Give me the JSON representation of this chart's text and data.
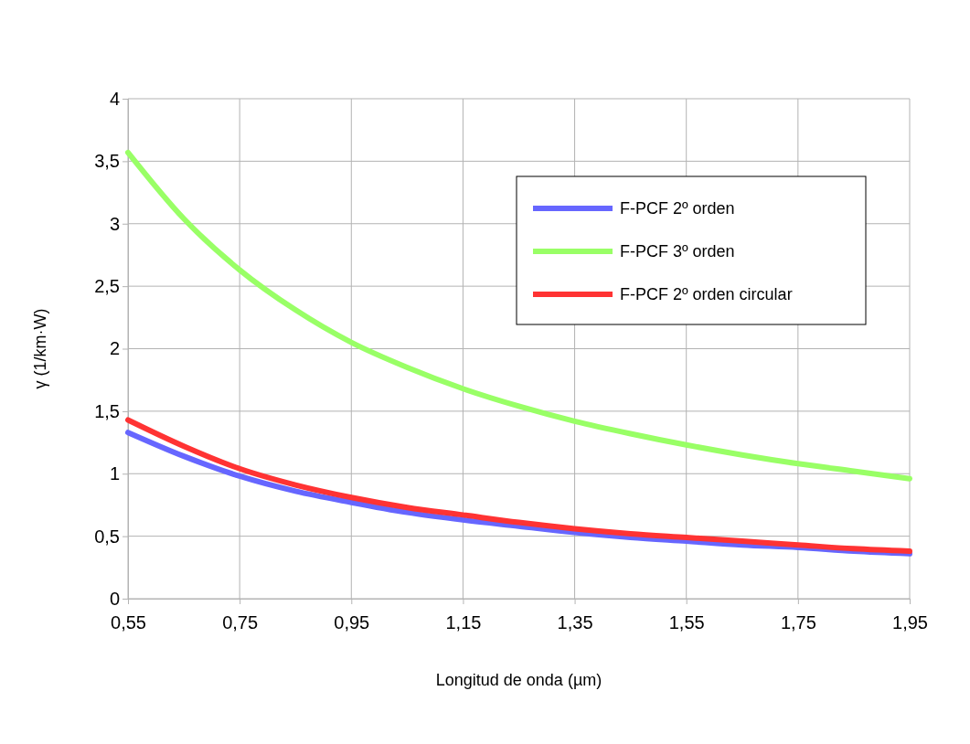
{
  "chart_data": {
    "type": "line",
    "xlabel": "Longitud de onda (µm)",
    "ylabel": "γ (1/km·W)",
    "x": [
      0.55,
      0.65,
      0.75,
      0.85,
      0.95,
      1.05,
      1.15,
      1.25,
      1.35,
      1.45,
      1.55,
      1.65,
      1.75,
      1.85,
      1.95
    ],
    "series": [
      {
        "name": "F-PCF 2º orden",
        "color": "#6666ff",
        "values": [
          1.33,
          1.14,
          0.98,
          0.86,
          0.77,
          0.69,
          0.63,
          0.58,
          0.53,
          0.49,
          0.46,
          0.43,
          0.41,
          0.38,
          0.36
        ]
      },
      {
        "name": "F-PCF 3º orden",
        "color": "#99ff66",
        "values": [
          3.57,
          3.04,
          2.63,
          2.31,
          2.05,
          1.85,
          1.68,
          1.54,
          1.42,
          1.32,
          1.23,
          1.15,
          1.08,
          1.02,
          0.96
        ]
      },
      {
        "name": "F-PCF 2º orden circular",
        "color": "#ff3333",
        "values": [
          1.43,
          1.22,
          1.04,
          0.91,
          0.81,
          0.73,
          0.67,
          0.61,
          0.56,
          0.52,
          0.49,
          0.46,
          0.43,
          0.4,
          0.38
        ]
      }
    ],
    "xlim": [
      0.55,
      1.95
    ],
    "xticks": [
      {
        "value": 0.55,
        "label": "0,55"
      },
      {
        "value": 0.75,
        "label": "0,75"
      },
      {
        "value": 0.95,
        "label": "0,95"
      },
      {
        "value": 1.15,
        "label": "1,15"
      },
      {
        "value": 1.35,
        "label": "1,35"
      },
      {
        "value": 1.55,
        "label": "1,55"
      },
      {
        "value": 1.75,
        "label": "1,75"
      },
      {
        "value": 1.95,
        "label": "1,95"
      }
    ],
    "ylim": [
      0,
      4
    ],
    "yticks": [
      0,
      {
        "value": 0.5,
        "label": "0,5"
      },
      1,
      {
        "value": 1.5,
        "label": "1,5"
      },
      2,
      {
        "value": 2.5,
        "label": "2,5"
      },
      3,
      {
        "value": 3.5,
        "label": "3,5"
      },
      4
    ],
    "grid": true,
    "legend": "top right",
    "marker": "none",
    "line_style": "solid"
  }
}
